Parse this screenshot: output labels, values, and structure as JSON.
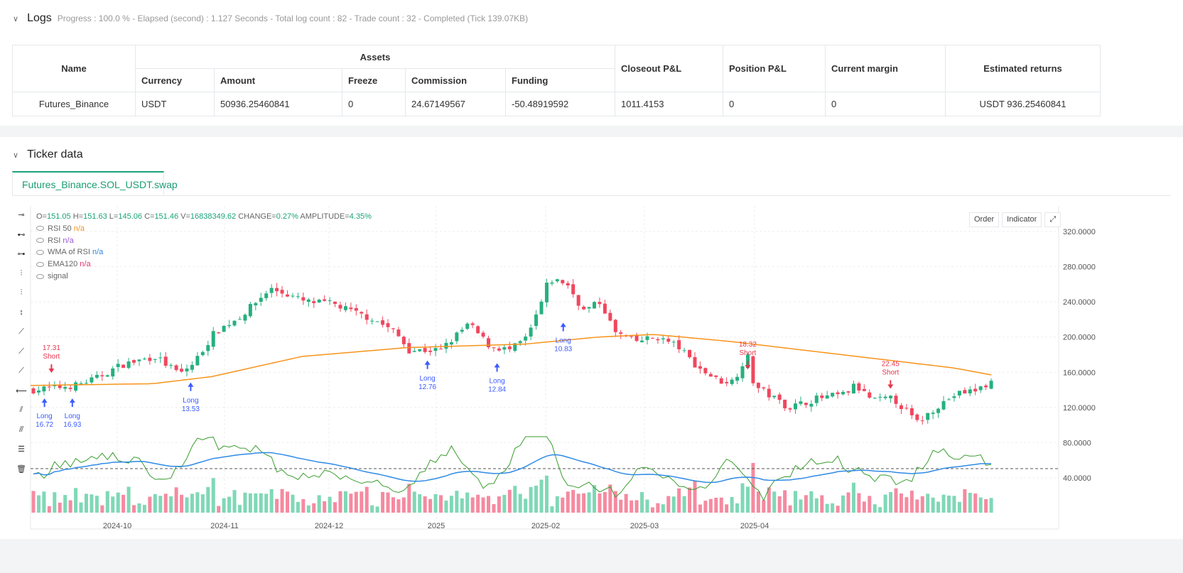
{
  "logs": {
    "title": "Logs",
    "status": "Progress : 100.0 % - Elapsed (second) : 1.127  Seconds - Total log count : 82 - Trade count : 32 - Completed (Tick 139.07KB)"
  },
  "table": {
    "headers": {
      "name": "Name",
      "assets": "Assets",
      "closeout": "Closeout P&L",
      "position": "Position P&L",
      "margin": "Current margin",
      "returns": "Estimated returns"
    },
    "sub_headers": [
      "Currency",
      "Amount",
      "Freeze",
      "Commission",
      "Funding"
    ],
    "row": [
      "Futures_Binance",
      "USDT",
      "50936.25460841",
      "0",
      "24.67149567",
      "-50.48919592",
      "1011.4153",
      "0",
      "0",
      "USDT 936.25460841"
    ]
  },
  "ticker": {
    "title": "Ticker data",
    "tab": "Futures_Binance.SOL_USDT.swap"
  },
  "chart": {
    "ohlc": {
      "o_label": "O=",
      "o": "151.05",
      "h_label": "H=",
      "h": "151.63",
      "l_label": "L=",
      "l": "145.06",
      "c_label": "C=",
      "c": "151.46",
      "v_label": "V=",
      "v": "16838349.62",
      "change_label": "CHANGE=",
      "change": "0.27%",
      "amp_label": "AMPLITUDE=",
      "amp": "4.35%"
    },
    "indicators": [
      {
        "name": "RSI 50",
        "value": "n/a",
        "color": "#f7931a"
      },
      {
        "name": "RSI",
        "value": "n/a",
        "color": "#9b59d0"
      },
      {
        "name": "WMA of RSI",
        "value": "n/a",
        "color": "#2e86de"
      },
      {
        "name": "EMA120",
        "value": "n/a",
        "color": "#e8336d"
      },
      {
        "name": "signal",
        "value": "",
        "color": "#999"
      }
    ],
    "buttons": {
      "order": "Order",
      "indicator": "Indicator"
    },
    "colors": {
      "up": "#26b07f",
      "down": "#f0475e",
      "ema": "#f7931a",
      "rsi": "#3a9d2f",
      "wma": "#2e8ae6",
      "signal": "#3b5bff",
      "short": "#e8364e"
    }
  },
  "chart_data": {
    "type": "candlestick",
    "y_ticks": [
      "320.0000",
      "280.0000",
      "240.0000",
      "200.0000",
      "160.0000",
      "120.0000",
      "80.0000",
      "40.0000"
    ],
    "x_ticks": [
      "2024-10",
      "2024-11",
      "2024-12",
      "2025",
      "2025-02",
      "2025-03",
      "2025-04"
    ],
    "close_path": [
      [
        "2024-09-06",
        140
      ],
      [
        "2024-09-18",
        145
      ],
      [
        "2024-09-24",
        153
      ],
      [
        "2024-10-01",
        168
      ],
      [
        "2024-10-11",
        178
      ],
      [
        "2024-10-18",
        158
      ],
      [
        "2024-10-22",
        170
      ],
      [
        "2024-10-28",
        205
      ],
      [
        "2024-11-05",
        225
      ],
      [
        "2024-11-13",
        255
      ],
      [
        "2024-11-17",
        250
      ],
      [
        "2024-11-23",
        240
      ],
      [
        "2024-12-01",
        238
      ],
      [
        "2024-12-07",
        228
      ],
      [
        "2024-12-13",
        220
      ],
      [
        "2024-12-19",
        205
      ],
      [
        "2024-12-23",
        185
      ],
      [
        "2025-01-01",
        185
      ],
      [
        "2025-01-09",
        215
      ],
      [
        "2025-01-15",
        190
      ],
      [
        "2025-01-21",
        185
      ],
      [
        "2025-01-26",
        200
      ],
      [
        "2025-01-30",
        240
      ],
      [
        "2025-02-01",
        265
      ],
      [
        "2025-02-06",
        262
      ],
      [
        "2025-02-11",
        230
      ],
      [
        "2025-02-16",
        240
      ],
      [
        "2025-02-20",
        205
      ],
      [
        "2025-02-26",
        195
      ],
      [
        "2025-03-04",
        200
      ],
      [
        "2025-03-10",
        190
      ],
      [
        "2025-03-16",
        165
      ],
      [
        "2025-03-22",
        150
      ],
      [
        "2025-03-26",
        150
      ],
      [
        "2025-03-30",
        180
      ],
      [
        "2025-04-01",
        145
      ],
      [
        "2025-04-07",
        130
      ],
      [
        "2025-04-11",
        120
      ],
      [
        "2025-04-19",
        130
      ],
      [
        "2025-04-27",
        135
      ],
      [
        "2025-04-30",
        145
      ],
      [
        "2025-05-05",
        128
      ],
      [
        "2025-05-11",
        130
      ],
      [
        "2025-05-15",
        115
      ],
      [
        "2025-05-18",
        102
      ],
      [
        "2025-05-23",
        120
      ],
      [
        "2025-05-29",
        135
      ],
      [
        "2025-06-04",
        140
      ],
      [
        "2025-06-09",
        151
      ]
    ],
    "signals": [
      {
        "type": "long",
        "label": "Long",
        "value": "16.72",
        "date": "2024-09-10",
        "price": 140
      },
      {
        "type": "short",
        "label": "Short",
        "value": "17.31",
        "date": "2024-09-12",
        "price": 148
      },
      {
        "type": "long",
        "label": "Long",
        "value": "16.93",
        "date": "2024-09-18",
        "price": 140
      },
      {
        "type": "long",
        "label": "Long",
        "value": "13.53",
        "date": "2024-10-22",
        "price": 158
      },
      {
        "type": "long",
        "label": "Long",
        "value": "12.76",
        "date": "2024-12-29",
        "price": 183
      },
      {
        "type": "long",
        "label": "Long",
        "value": "12.84",
        "date": "2025-01-18",
        "price": 180
      },
      {
        "type": "long",
        "label": "Long",
        "value": "10.83",
        "date": "2025-02-06",
        "price": 226
      },
      {
        "type": "short",
        "label": "Short",
        "value": "18.32",
        "date": "2025-03-31",
        "price": 152
      },
      {
        "type": "short",
        "label": "Short",
        "value": "22.45",
        "date": "2025-05-11",
        "price": 130
      }
    ],
    "ema120_path": [
      [
        "2024-09-06",
        145
      ],
      [
        "2024-10-11",
        147
      ],
      [
        "2024-10-28",
        155
      ],
      [
        "2024-11-23",
        178
      ],
      [
        "2024-12-23",
        188
      ],
      [
        "2025-01-26",
        192
      ],
      [
        "2025-02-16",
        200
      ],
      [
        "2025-03-04",
        203
      ],
      [
        "2025-03-26",
        195
      ],
      [
        "2025-04-27",
        180
      ],
      [
        "2025-05-29",
        165
      ],
      [
        "2025-06-09",
        157
      ]
    ],
    "rsi_reference": 50
  }
}
